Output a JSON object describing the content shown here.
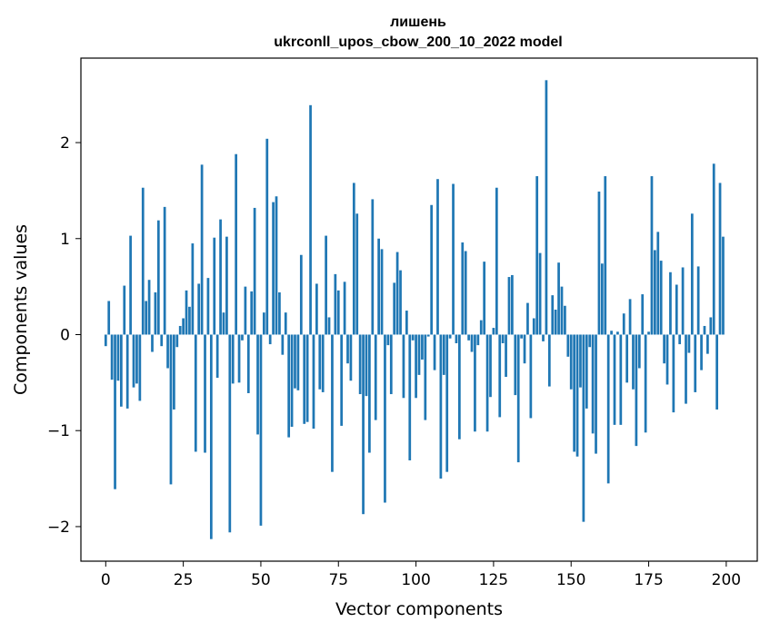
{
  "chart_data": {
    "type": "bar",
    "title_line1": "лишень",
    "title_line2": "ukrconll_upos_cbow_200_10_2022 model",
    "xlabel": "Vector components",
    "ylabel": "Components values",
    "xlim": [
      -8,
      210
    ],
    "ylim": [
      -2.36,
      2.88
    ],
    "xticks": [
      0,
      25,
      50,
      75,
      100,
      125,
      150,
      175,
      200
    ],
    "xtick_labels": [
      "0",
      "25",
      "50",
      "75",
      "100",
      "125",
      "150",
      "175",
      "200"
    ],
    "yticks": [
      -2,
      -1,
      0,
      1,
      2
    ],
    "ytick_labels": [
      "−2",
      "−1",
      "0",
      "1",
      "2"
    ],
    "bar_color": "#1f77b4",
    "x": [
      0,
      1,
      2,
      3,
      4,
      5,
      6,
      7,
      8,
      9,
      10,
      11,
      12,
      13,
      14,
      15,
      16,
      17,
      18,
      19,
      20,
      21,
      22,
      23,
      24,
      25,
      26,
      27,
      28,
      29,
      30,
      31,
      32,
      33,
      34,
      35,
      36,
      37,
      38,
      39,
      40,
      41,
      42,
      43,
      44,
      45,
      46,
      47,
      48,
      49,
      50,
      51,
      52,
      53,
      54,
      55,
      56,
      57,
      58,
      59,
      60,
      61,
      62,
      63,
      64,
      65,
      66,
      67,
      68,
      69,
      70,
      71,
      72,
      73,
      74,
      75,
      76,
      77,
      78,
      79,
      80,
      81,
      82,
      83,
      84,
      85,
      86,
      87,
      88,
      89,
      90,
      91,
      92,
      93,
      94,
      95,
      96,
      97,
      98,
      99,
      100,
      101,
      102,
      103,
      104,
      105,
      106,
      107,
      108,
      109,
      110,
      111,
      112,
      113,
      114,
      115,
      116,
      117,
      118,
      119,
      120,
      121,
      122,
      123,
      124,
      125,
      126,
      127,
      128,
      129,
      130,
      131,
      132,
      133,
      134,
      135,
      136,
      137,
      138,
      139,
      140,
      141,
      142,
      143,
      144,
      145,
      146,
      147,
      148,
      149,
      150,
      151,
      152,
      153,
      154,
      155,
      156,
      157,
      158,
      159,
      160,
      161,
      162,
      163,
      164,
      165,
      166,
      167,
      168,
      169,
      170,
      171,
      172,
      173,
      174,
      175,
      176,
      177,
      178,
      179,
      180,
      181,
      182,
      183,
      184,
      185,
      186,
      187,
      188,
      189,
      190,
      191,
      192,
      193,
      194,
      195,
      196,
      197,
      198,
      199
    ],
    "values": [
      -0.12,
      0.35,
      -0.47,
      -1.61,
      -0.48,
      -0.75,
      0.51,
      -0.77,
      1.03,
      -0.55,
      -0.51,
      -0.69,
      1.53,
      0.35,
      0.57,
      -0.18,
      0.44,
      1.19,
      -0.12,
      1.33,
      -0.35,
      -1.56,
      -0.78,
      -0.13,
      0.09,
      0.17,
      0.46,
      0.29,
      0.95,
      -1.22,
      0.53,
      1.77,
      -1.23,
      0.59,
      -2.13,
      1.01,
      -0.45,
      1.2,
      0.23,
      1.02,
      -2.06,
      -0.51,
      1.88,
      -0.5,
      -0.06,
      0.5,
      -0.61,
      0.45,
      1.32,
      -1.04,
      -1.99,
      0.23,
      2.04,
      -0.1,
      1.38,
      1.44,
      0.44,
      -0.21,
      0.23,
      -1.07,
      -0.96,
      -0.56,
      -0.58,
      0.83,
      -0.93,
      -0.91,
      2.39,
      -0.98,
      0.53,
      -0.57,
      -0.6,
      1.03,
      0.18,
      -1.43,
      0.63,
      0.46,
      -0.95,
      0.55,
      -0.3,
      -0.48,
      1.58,
      1.26,
      -0.62,
      -1.87,
      -0.64,
      -1.23,
      1.41,
      -0.89,
      1.0,
      0.89,
      -1.75,
      -0.11,
      -0.62,
      0.54,
      0.86,
      0.67,
      -0.66,
      0.25,
      -1.31,
      -0.06,
      -0.66,
      -0.42,
      -0.26,
      -0.89,
      -0.02,
      1.35,
      -0.37,
      1.62,
      -1.5,
      -0.42,
      -1.43,
      -0.04,
      1.57,
      -0.09,
      -1.09,
      0.96,
      0.87,
      -0.06,
      -0.18,
      -1.01,
      -0.11,
      0.15,
      0.76,
      -1.01,
      -0.65,
      0.07,
      1.53,
      -0.86,
      -0.09,
      -0.44,
      0.6,
      0.62,
      -0.63,
      -1.33,
      -0.04,
      -0.3,
      0.33,
      -0.87,
      0.17,
      1.65,
      0.85,
      -0.07,
      2.65,
      -0.54,
      0.41,
      0.26,
      0.75,
      0.5,
      0.3,
      -0.23,
      -0.57,
      -1.22,
      -1.27,
      -0.55,
      -1.95,
      -0.77,
      -0.13,
      -1.03,
      -1.24,
      1.49,
      0.74,
      1.65,
      -1.55,
      0.04,
      -0.94,
      0.03,
      -0.94,
      0.22,
      -0.5,
      0.37,
      -0.57,
      -1.16,
      -0.35,
      0.42,
      -1.02,
      0.03,
      1.65,
      0.88,
      1.07,
      0.77,
      -0.3,
      -0.52,
      0.65,
      -0.81,
      0.52,
      -0.1,
      0.7,
      -0.72,
      -0.19,
      1.26,
      -0.6,
      0.71,
      -0.37,
      0.09,
      -0.2,
      0.18,
      1.78,
      -0.78,
      1.58,
      1.02
    ]
  }
}
